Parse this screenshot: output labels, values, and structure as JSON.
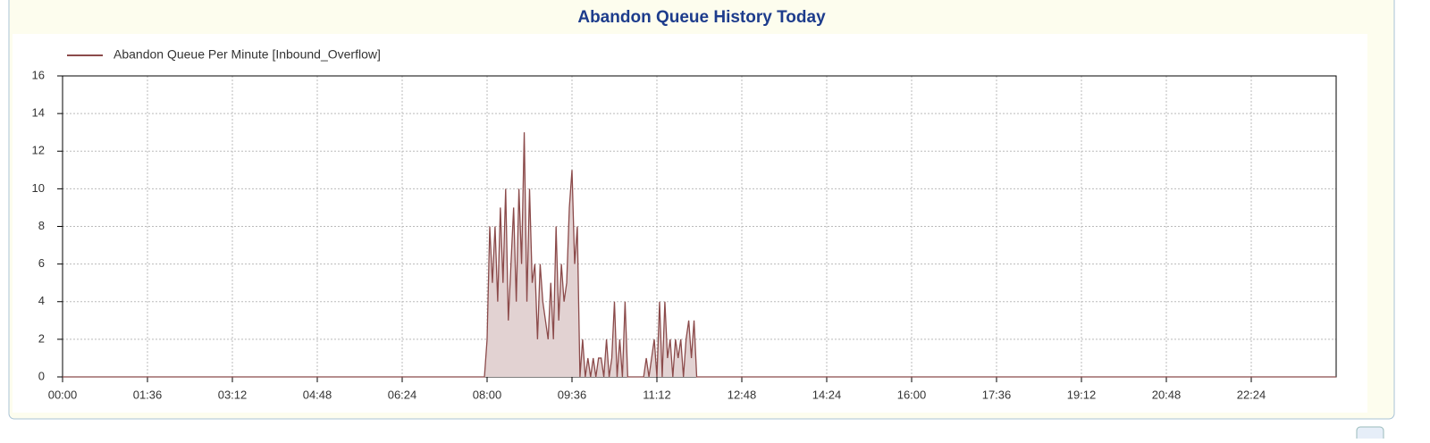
{
  "chart_data": {
    "type": "area",
    "title": "Abandon Queue History Today",
    "x": [
      0,
      477,
      480,
      483,
      486,
      489,
      492,
      495,
      498,
      501,
      504,
      507,
      510,
      513,
      516,
      519,
      522,
      525,
      528,
      531,
      534,
      537,
      540,
      543,
      546,
      549,
      552,
      555,
      558,
      561,
      564,
      567,
      570,
      573,
      576,
      579,
      582,
      585,
      588,
      591,
      594,
      597,
      600,
      603,
      606,
      609,
      612,
      615,
      618,
      621,
      624,
      627,
      630,
      633,
      636,
      639,
      642,
      645,
      648,
      651,
      654,
      657,
      660,
      663,
      666,
      669,
      672,
      675,
      678,
      681,
      684,
      687,
      690,
      693,
      696,
      699,
      702,
      705,
      708,
      711,
      714,
      717,
      720,
      723,
      726,
      729,
      732,
      735,
      1440
    ],
    "series": [
      {
        "name": "Abandon Queue Per Minute [Inbound_Overflow]",
        "color": "#8b4a4a",
        "fill": "#e2d2d2",
        "values": [
          0,
          0,
          2,
          8,
          5,
          8,
          4,
          9,
          5,
          10,
          3,
          6,
          9,
          4,
          10,
          6,
          13,
          4,
          10,
          5,
          6,
          2,
          6,
          4,
          3,
          2,
          5,
          2,
          8,
          3,
          6,
          4,
          5,
          9,
          11,
          6,
          8,
          0,
          2,
          0,
          1,
          0,
          1,
          0,
          1,
          1,
          0,
          2,
          0,
          1,
          4,
          0,
          2,
          0,
          4,
          0,
          0,
          0,
          0,
          0,
          0,
          0,
          1,
          0,
          1,
          2,
          0,
          4,
          0,
          4,
          1,
          2,
          0,
          2,
          1,
          2,
          0,
          2,
          3,
          1,
          3,
          0,
          0,
          0,
          0,
          0,
          0,
          0,
          0
        ]
      }
    ],
    "xlim": [
      0,
      1440
    ],
    "xticks": [
      {
        "value": 0,
        "label": "00:00"
      },
      {
        "value": 96,
        "label": "01:36"
      },
      {
        "value": 192,
        "label": "03:12"
      },
      {
        "value": 288,
        "label": "04:48"
      },
      {
        "value": 384,
        "label": "06:24"
      },
      {
        "value": 480,
        "label": "08:00"
      },
      {
        "value": 576,
        "label": "09:36"
      },
      {
        "value": 672,
        "label": "11:12"
      },
      {
        "value": 768,
        "label": "12:48"
      },
      {
        "value": 864,
        "label": "14:24"
      },
      {
        "value": 960,
        "label": "16:00"
      },
      {
        "value": 1056,
        "label": "17:36"
      },
      {
        "value": 1152,
        "label": "19:12"
      },
      {
        "value": 1248,
        "label": "20:48"
      },
      {
        "value": 1344,
        "label": "22:24"
      }
    ],
    "ylim": [
      0,
      16
    ],
    "yticks": [
      0,
      2,
      4,
      6,
      8,
      10,
      12,
      14,
      16
    ],
    "grid": true
  }
}
